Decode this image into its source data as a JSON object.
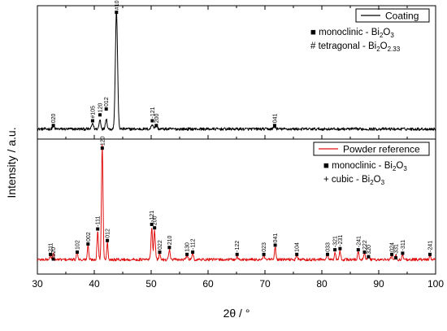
{
  "chart_data": {
    "type": "line",
    "xlabel": "2θ / °",
    "ylabel": "Intensity / a.u.",
    "xlim": [
      30,
      100
    ],
    "xticks": [
      30,
      40,
      50,
      60,
      70,
      80,
      90,
      100
    ],
    "panels": [
      {
        "id": "top",
        "series": {
          "name": "Coating",
          "color": "#000000",
          "baseline": 0.03,
          "noise": 0.012,
          "peaks": [
            {
              "x": 32.8,
              "h": 0.025,
              "w": 0.25
            },
            {
              "x": 39.7,
              "h": 0.05,
              "w": 0.25
            },
            {
              "x": 41.0,
              "h": 0.08,
              "w": 0.25
            },
            {
              "x": 42.1,
              "h": 0.09,
              "w": 0.25
            },
            {
              "x": 43.9,
              "h": 1.0,
              "w": 0.32
            },
            {
              "x": 50.2,
              "h": 0.04,
              "w": 0.3
            },
            {
              "x": 50.9,
              "h": 0.03,
              "w": 0.3
            },
            {
              "x": 71.7,
              "h": 0.02,
              "w": 0.3
            }
          ]
        },
        "markers": [
          {
            "x": 32.8,
            "y": 0.06,
            "label": "020"
          },
          {
            "x": 39.7,
            "y": 0.1,
            "label": "#105"
          },
          {
            "x": 41.0,
            "y": 0.15,
            "label": "120"
          },
          {
            "x": 42.1,
            "y": 0.2,
            "label": "012"
          },
          {
            "x": 43.9,
            "y": 1.02,
            "label": "#107"
          },
          {
            "x": 50.2,
            "y": 0.1,
            "label": "-121"
          },
          {
            "x": 50.9,
            "y": 0.06,
            "label": "200"
          },
          {
            "x": 71.7,
            "y": 0.06,
            "label": "041"
          }
        ],
        "legend": {
          "label": "Coating",
          "placement": "top-right"
        },
        "phases": [
          {
            "symbol": "■",
            "text": "monoclinic - Bi",
            "sub1": "2",
            "mid": "O",
            "sub2": "3"
          },
          {
            "symbol": "#",
            "text": "tetragonal - Bi",
            "sub1": "2",
            "mid": "O",
            "sub2": "2.33"
          }
        ]
      },
      {
        "id": "bottom",
        "series": {
          "name": "Powder reference",
          "color": "#e01010",
          "baseline": 0.055,
          "noise": 0.012,
          "peaks": [
            {
              "x": 32.3,
              "h": 0.04,
              "w": 0.2
            },
            {
              "x": 32.8,
              "h": 0.05,
              "w": 0.2
            },
            {
              "x": 37.0,
              "h": 0.07,
              "w": 0.2
            },
            {
              "x": 38.9,
              "h": 0.12,
              "w": 0.2
            },
            {
              "x": 40.6,
              "h": 0.25,
              "w": 0.2
            },
            {
              "x": 41.4,
              "h": 1.0,
              "w": 0.22
            },
            {
              "x": 42.3,
              "h": 0.15,
              "w": 0.2
            },
            {
              "x": 50.1,
              "h": 0.28,
              "w": 0.22
            },
            {
              "x": 50.6,
              "h": 0.25,
              "w": 0.22
            },
            {
              "x": 51.5,
              "h": 0.06,
              "w": 0.2
            },
            {
              "x": 53.2,
              "h": 0.09,
              "w": 0.2
            },
            {
              "x": 56.3,
              "h": 0.04,
              "w": 0.2
            },
            {
              "x": 57.3,
              "h": 0.06,
              "w": 0.2
            },
            {
              "x": 65.1,
              "h": 0.03,
              "w": 0.2
            },
            {
              "x": 69.8,
              "h": 0.035,
              "w": 0.2
            },
            {
              "x": 71.8,
              "h": 0.11,
              "w": 0.2
            },
            {
              "x": 75.6,
              "h": 0.04,
              "w": 0.2
            },
            {
              "x": 81.0,
              "h": 0.05,
              "w": 0.2
            },
            {
              "x": 82.3,
              "h": 0.06,
              "w": 0.2
            },
            {
              "x": 83.2,
              "h": 0.07,
              "w": 0.2
            },
            {
              "x": 86.4,
              "h": 0.07,
              "w": 0.2
            },
            {
              "x": 87.5,
              "h": 0.05,
              "w": 0.2
            },
            {
              "x": 88.2,
              "h": 0.035,
              "w": 0.2
            },
            {
              "x": 92.3,
              "h": 0.04,
              "w": 0.2
            },
            {
              "x": 93.0,
              "h": 0.035,
              "w": 0.2
            },
            {
              "x": 94.2,
              "h": 0.045,
              "w": 0.2
            },
            {
              "x": 99.0,
              "h": 0.035,
              "w": 0.2
            }
          ]
        },
        "markers": [
          {
            "x": 32.3,
            "y": 0.1,
            "label": "211"
          },
          {
            "x": 32.8,
            "y": 0.06,
            "label": "020"
          },
          {
            "x": 37.0,
            "y": 0.12,
            "label": "102"
          },
          {
            "x": 38.9,
            "y": 0.19,
            "label": "002"
          },
          {
            "x": 40.6,
            "y": 0.32,
            "label": "-111"
          },
          {
            "x": 41.4,
            "y": 1.02,
            "label": "120"
          },
          {
            "x": 42.3,
            "y": 0.22,
            "label": "012"
          },
          {
            "x": 50.1,
            "y": 0.36,
            "label": "-121"
          },
          {
            "x": 50.6,
            "y": 0.33,
            "label": "200"
          },
          {
            "x": 51.5,
            "y": 0.12,
            "label": "022"
          },
          {
            "x": 53.2,
            "y": 0.16,
            "label": "210"
          },
          {
            "x": 56.3,
            "y": 0.1,
            "label": "130"
          },
          {
            "x": 57.3,
            "y": 0.12,
            "label": "-112"
          },
          {
            "x": 65.1,
            "y": 0.1,
            "label": "-122"
          },
          {
            "x": 69.8,
            "y": 0.1,
            "label": "023"
          },
          {
            "x": 71.8,
            "y": 0.18,
            "label": "041"
          },
          {
            "x": 75.6,
            "y": 0.1,
            "label": "104"
          },
          {
            "x": 81.0,
            "y": 0.1,
            "label": "033"
          },
          {
            "x": 82.3,
            "y": 0.14,
            "label": "-321"
          },
          {
            "x": 83.2,
            "y": 0.15,
            "label": "-231"
          },
          {
            "x": 86.4,
            "y": 0.14,
            "label": "-241"
          },
          {
            "x": 87.5,
            "y": 0.12,
            "label": "222"
          },
          {
            "x": 88.2,
            "y": 0.08,
            "label": "320"
          },
          {
            "x": 92.3,
            "y": 0.1,
            "label": "024"
          },
          {
            "x": 93.0,
            "y": 0.07,
            "label": "-331"
          },
          {
            "x": 94.2,
            "y": 0.11,
            "label": "-311"
          },
          {
            "x": 99.0,
            "y": 0.1,
            "label": "-241"
          }
        ],
        "legend": {
          "label": "Powder reference",
          "placement": "top-right"
        },
        "phases": [
          {
            "symbol": "■",
            "text": "monoclinic - Bi",
            "sub1": "2",
            "mid": "O",
            "sub2": "3"
          },
          {
            "symbol": "+",
            "text": "cubic - Bi",
            "sub1": "2",
            "mid": "O",
            "sub2": "3"
          }
        ]
      }
    ]
  }
}
